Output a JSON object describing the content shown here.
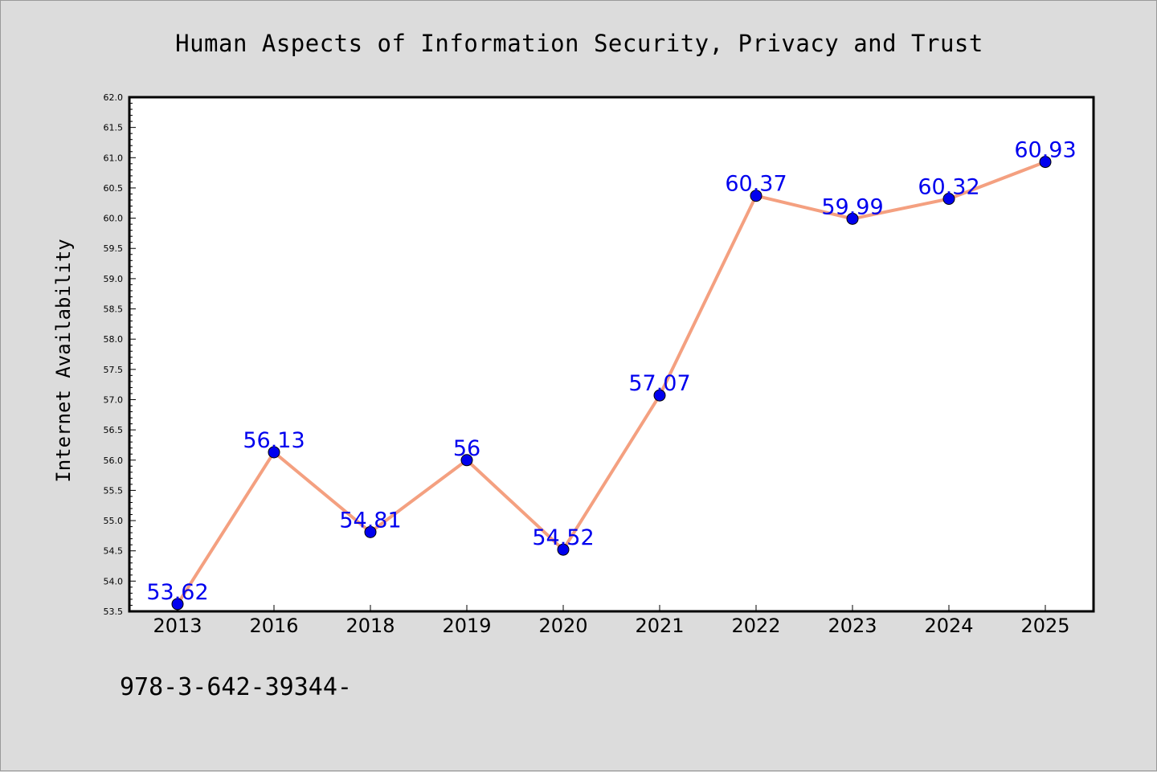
{
  "chart_data": {
    "type": "line",
    "title": "Human Aspects of Information Security, Privacy and Trust",
    "xlabel": "",
    "ylabel": "Internet Availability",
    "categories": [
      "2013",
      "2016",
      "2018",
      "2019",
      "2020",
      "2021",
      "2022",
      "2023",
      "2024",
      "2025"
    ],
    "series": [
      {
        "values": [
          53.62,
          56.13,
          54.81,
          56,
          54.52,
          57.07,
          60.37,
          59.99,
          60.32,
          60.93
        ],
        "labels": [
          "53.62",
          "56.13",
          "54.81",
          "56",
          "54.52",
          "57.07",
          "60.37",
          "59.99",
          "60.32",
          "60.93"
        ],
        "line_color": "#f4a080",
        "marker_color": "#0000ee",
        "label_color": "#0000ee"
      }
    ],
    "ylim": [
      53.5,
      62.0
    ],
    "yticks": [
      "53.5",
      "54.0",
      "54.5",
      "55.0",
      "55.5",
      "56.0",
      "56.5",
      "57.0",
      "57.5",
      "58.0",
      "58.5",
      "59.0",
      "59.5",
      "60.0",
      "60.5",
      "61.0",
      "61.5",
      "62.0"
    ],
    "grid": false,
    "background": "#ffffff"
  },
  "footer_text": "978-3-642-39344-",
  "colors": {
    "page_background": "#dcdcdc",
    "plot_border": "#000000"
  }
}
